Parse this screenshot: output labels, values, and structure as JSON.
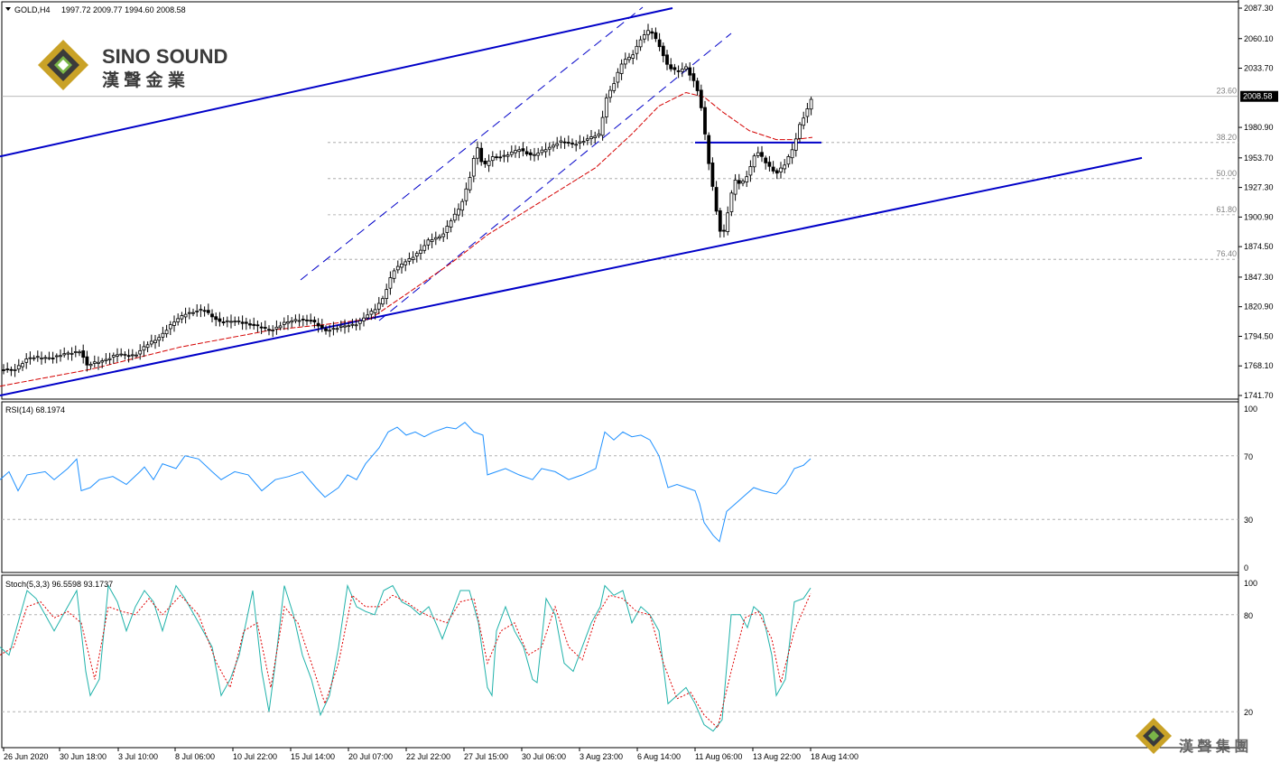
{
  "header": {
    "symbol": "GOLD,H4",
    "ohlc": "1997.72 2009.77 1994.60 2008.58"
  },
  "brand": {
    "name": "SINO SOUND",
    "chinese": "漢 聲 金 業",
    "footer_chinese": "漢 聲 集 團",
    "colors": {
      "gold": "#c9a227",
      "dark": "#3b3b3b",
      "green": "#7ab648"
    }
  },
  "price_axis": {
    "labels": [
      "2087.30",
      "2060.10",
      "2033.70",
      "1980.90",
      "1953.70",
      "1927.30",
      "1900.90",
      "1874.50",
      "1847.30",
      "1820.90",
      "1794.50",
      "1768.10",
      "1741.70"
    ],
    "current_price": "2008.58"
  },
  "fib_labels": [
    "23.60",
    "38.20",
    "50.00",
    "61.80",
    "76.40"
  ],
  "rsi": {
    "title": "RSI(14) 68.1974",
    "levels": [
      "100",
      "70",
      "30",
      "0"
    ]
  },
  "stoch": {
    "title": "Stoch(5,3,3) 96.5598 93.1737",
    "levels": [
      "100",
      "80",
      "20"
    ]
  },
  "time_axis": [
    "26 Jun 2020",
    "30 Jun 18:00",
    "3 Jul 10:00",
    "8 Jul 06:00",
    "10 Jul 22:00",
    "15 Jul 14:00",
    "20 Jul 07:00",
    "22 Jul 22:00",
    "27 Jul 15:00",
    "30 Jul 06:00",
    "3 Aug 23:00",
    "6 Aug 14:00",
    "11 Aug 06:00",
    "13 Aug 22:00",
    "18 Aug 14:00"
  ],
  "chart_data": {
    "type": "candlestick",
    "title": "GOLD,H4",
    "ylim": [
      1741.7,
      2087.3
    ],
    "price_path": [
      [
        0,
        1765
      ],
      [
        15,
        1764
      ],
      [
        30,
        1775
      ],
      [
        60,
        1776
      ],
      [
        90,
        1782
      ],
      [
        95,
        1768
      ],
      [
        110,
        1772
      ],
      [
        130,
        1778
      ],
      [
        150,
        1778
      ],
      [
        160,
        1785
      ],
      [
        175,
        1793
      ],
      [
        190,
        1805
      ],
      [
        205,
        1815
      ],
      [
        225,
        1818
      ],
      [
        245,
        1807
      ],
      [
        265,
        1808
      ],
      [
        285,
        1803
      ],
      [
        300,
        1800
      ],
      [
        315,
        1806
      ],
      [
        330,
        1810
      ],
      [
        345,
        1808
      ],
      [
        360,
        1800
      ],
      [
        375,
        1802
      ],
      [
        395,
        1806
      ],
      [
        415,
        1818
      ],
      [
        425,
        1830
      ],
      [
        435,
        1852
      ],
      [
        450,
        1862
      ],
      [
        465,
        1870
      ],
      [
        475,
        1880
      ],
      [
        490,
        1885
      ],
      [
        500,
        1898
      ],
      [
        510,
        1910
      ],
      [
        520,
        1935
      ],
      [
        528,
        1965
      ],
      [
        535,
        1945
      ],
      [
        545,
        1955
      ],
      [
        560,
        1955
      ],
      [
        575,
        1962
      ],
      [
        590,
        1955
      ],
      [
        605,
        1962
      ],
      [
        620,
        1968
      ],
      [
        635,
        1966
      ],
      [
        650,
        1970
      ],
      [
        665,
        1975
      ],
      [
        670,
        2005
      ],
      [
        680,
        2020
      ],
      [
        690,
        2040
      ],
      [
        700,
        2045
      ],
      [
        710,
        2060
      ],
      [
        720,
        2068
      ],
      [
        730,
        2055
      ],
      [
        740,
        2035
      ],
      [
        750,
        2030
      ],
      [
        760,
        2035
      ],
      [
        770,
        2020
      ],
      [
        775,
        2008
      ],
      [
        780,
        1980
      ],
      [
        785,
        1950
      ],
      [
        790,
        1925
      ],
      [
        795,
        1900
      ],
      [
        800,
        1880
      ],
      [
        805,
        1900
      ],
      [
        810,
        1920
      ],
      [
        815,
        1935
      ],
      [
        820,
        1930
      ],
      [
        825,
        1935
      ],
      [
        830,
        1942
      ],
      [
        835,
        1955
      ],
      [
        840,
        1958
      ],
      [
        850,
        1948
      ],
      [
        860,
        1940
      ],
      [
        870,
        1948
      ],
      [
        880,
        1965
      ],
      [
        885,
        1982
      ],
      [
        890,
        1990
      ],
      [
        895,
        1998
      ],
      [
        900,
        2008.58
      ]
    ],
    "moving_average": [
      [
        0,
        1750
      ],
      [
        100,
        1765
      ],
      [
        200,
        1785
      ],
      [
        300,
        1800
      ],
      [
        360,
        1805
      ],
      [
        410,
        1810
      ],
      [
        450,
        1832
      ],
      [
        500,
        1860
      ],
      [
        540,
        1885
      ],
      [
        580,
        1905
      ],
      [
        620,
        1925
      ],
      [
        660,
        1945
      ],
      [
        700,
        1975
      ],
      [
        730,
        2000
      ],
      [
        760,
        2012
      ],
      [
        780,
        2008
      ],
      [
        800,
        1995
      ],
      [
        830,
        1978
      ],
      [
        860,
        1970
      ],
      [
        880,
        1970
      ],
      [
        900,
        1972
      ]
    ],
    "fib_levels": [
      {
        "label": "23.60",
        "price": 2008.58
      },
      {
        "label": "38.20",
        "price": 1967.4
      },
      {
        "label": "50.00",
        "price": 1935.2
      },
      {
        "label": "61.80",
        "price": 1902.9
      },
      {
        "label": "76.40",
        "price": 1863.2
      }
    ],
    "rsi_path": [
      [
        0,
        55
      ],
      [
        10,
        60
      ],
      [
        20,
        48
      ],
      [
        30,
        58
      ],
      [
        50,
        60
      ],
      [
        60,
        55
      ],
      [
        75,
        62
      ],
      [
        85,
        68
      ],
      [
        90,
        48
      ],
      [
        100,
        50
      ],
      [
        110,
        55
      ],
      [
        125,
        57
      ],
      [
        140,
        52
      ],
      [
        155,
        60
      ],
      [
        160,
        63
      ],
      [
        170,
        55
      ],
      [
        180,
        65
      ],
      [
        195,
        62
      ],
      [
        205,
        70
      ],
      [
        220,
        68
      ],
      [
        235,
        60
      ],
      [
        245,
        55
      ],
      [
        260,
        60
      ],
      [
        275,
        58
      ],
      [
        290,
        48
      ],
      [
        305,
        55
      ],
      [
        320,
        57
      ],
      [
        335,
        60
      ],
      [
        350,
        50
      ],
      [
        360,
        44
      ],
      [
        375,
        50
      ],
      [
        385,
        58
      ],
      [
        395,
        55
      ],
      [
        405,
        65
      ],
      [
        420,
        75
      ],
      [
        430,
        85
      ],
      [
        440,
        88
      ],
      [
        450,
        83
      ],
      [
        460,
        85
      ],
      [
        470,
        82
      ],
      [
        480,
        85
      ],
      [
        495,
        88
      ],
      [
        505,
        87
      ],
      [
        515,
        91
      ],
      [
        525,
        85
      ],
      [
        535,
        83
      ],
      [
        540,
        58
      ],
      [
        550,
        60
      ],
      [
        560,
        62
      ],
      [
        575,
        58
      ],
      [
        590,
        55
      ],
      [
        600,
        62
      ],
      [
        615,
        60
      ],
      [
        630,
        55
      ],
      [
        645,
        58
      ],
      [
        660,
        62
      ],
      [
        670,
        85
      ],
      [
        680,
        80
      ],
      [
        690,
        85
      ],
      [
        700,
        82
      ],
      [
        710,
        83
      ],
      [
        720,
        80
      ],
      [
        730,
        70
      ],
      [
        740,
        50
      ],
      [
        750,
        52
      ],
      [
        760,
        50
      ],
      [
        770,
        48
      ],
      [
        775,
        40
      ],
      [
        780,
        28
      ],
      [
        790,
        20
      ],
      [
        797,
        16
      ],
      [
        805,
        35
      ],
      [
        815,
        40
      ],
      [
        825,
        45
      ],
      [
        835,
        50
      ],
      [
        845,
        48
      ],
      [
        860,
        46
      ],
      [
        870,
        52
      ],
      [
        880,
        62
      ],
      [
        890,
        64
      ],
      [
        898,
        68.2
      ]
    ],
    "stoch_k": [
      [
        0,
        60
      ],
      [
        10,
        55
      ],
      [
        20,
        75
      ],
      [
        30,
        95
      ],
      [
        40,
        90
      ],
      [
        50,
        80
      ],
      [
        60,
        70
      ],
      [
        70,
        80
      ],
      [
        85,
        95
      ],
      [
        95,
        45
      ],
      [
        100,
        30
      ],
      [
        110,
        40
      ],
      [
        120,
        98
      ],
      [
        130,
        88
      ],
      [
        140,
        70
      ],
      [
        150,
        85
      ],
      [
        160,
        95
      ],
      [
        170,
        88
      ],
      [
        180,
        70
      ],
      [
        195,
        98
      ],
      [
        205,
        90
      ],
      [
        220,
        75
      ],
      [
        235,
        60
      ],
      [
        245,
        30
      ],
      [
        255,
        40
      ],
      [
        265,
        55
      ],
      [
        280,
        95
      ],
      [
        290,
        45
      ],
      [
        298,
        20
      ],
      [
        305,
        50
      ],
      [
        315,
        98
      ],
      [
        325,
        80
      ],
      [
        335,
        55
      ],
      [
        345,
        40
      ],
      [
        355,
        18
      ],
      [
        365,
        30
      ],
      [
        375,
        60
      ],
      [
        385,
        98
      ],
      [
        395,
        85
      ],
      [
        405,
        82
      ],
      [
        415,
        80
      ],
      [
        425,
        95
      ],
      [
        435,
        98
      ],
      [
        445,
        88
      ],
      [
        455,
        85
      ],
      [
        465,
        80
      ],
      [
        475,
        85
      ],
      [
        485,
        72
      ],
      [
        490,
        65
      ],
      [
        500,
        80
      ],
      [
        510,
        95
      ],
      [
        520,
        95
      ],
      [
        530,
        75
      ],
      [
        540,
        35
      ],
      [
        545,
        30
      ],
      [
        550,
        70
      ],
      [
        560,
        85
      ],
      [
        570,
        70
      ],
      [
        580,
        60
      ],
      [
        590,
        40
      ],
      [
        595,
        38
      ],
      [
        605,
        90
      ],
      [
        615,
        80
      ],
      [
        625,
        50
      ],
      [
        635,
        45
      ],
      [
        645,
        60
      ],
      [
        655,
        75
      ],
      [
        665,
        85
      ],
      [
        670,
        98
      ],
      [
        680,
        92
      ],
      [
        690,
        95
      ],
      [
        700,
        75
      ],
      [
        710,
        85
      ],
      [
        720,
        80
      ],
      [
        730,
        70
      ],
      [
        740,
        25
      ],
      [
        750,
        30
      ],
      [
        760,
        35
      ],
      [
        770,
        25
      ],
      [
        780,
        12
      ],
      [
        790,
        8
      ],
      [
        800,
        15
      ],
      [
        810,
        80
      ],
      [
        820,
        80
      ],
      [
        828,
        72
      ],
      [
        835,
        85
      ],
      [
        845,
        80
      ],
      [
        855,
        55
      ],
      [
        860,
        30
      ],
      [
        870,
        40
      ],
      [
        880,
        88
      ],
      [
        890,
        90
      ],
      [
        898,
        96.56
      ]
    ],
    "stoch_d": [
      [
        0,
        55
      ],
      [
        15,
        60
      ],
      [
        30,
        85
      ],
      [
        45,
        88
      ],
      [
        60,
        78
      ],
      [
        75,
        82
      ],
      [
        90,
        75
      ],
      [
        105,
        40
      ],
      [
        120,
        85
      ],
      [
        135,
        82
      ],
      [
        150,
        80
      ],
      [
        165,
        90
      ],
      [
        180,
        80
      ],
      [
        200,
        92
      ],
      [
        220,
        80
      ],
      [
        240,
        50
      ],
      [
        255,
        35
      ],
      [
        270,
        70
      ],
      [
        285,
        75
      ],
      [
        300,
        35
      ],
      [
        315,
        85
      ],
      [
        330,
        75
      ],
      [
        345,
        50
      ],
      [
        360,
        25
      ],
      [
        375,
        50
      ],
      [
        390,
        92
      ],
      [
        405,
        85
      ],
      [
        420,
        85
      ],
      [
        435,
        92
      ],
      [
        450,
        88
      ],
      [
        465,
        82
      ],
      [
        480,
        78
      ],
      [
        495,
        75
      ],
      [
        510,
        88
      ],
      [
        525,
        90
      ],
      [
        540,
        50
      ],
      [
        555,
        70
      ],
      [
        570,
        75
      ],
      [
        585,
        55
      ],
      [
        600,
        60
      ],
      [
        615,
        85
      ],
      [
        630,
        60
      ],
      [
        645,
        52
      ],
      [
        660,
        78
      ],
      [
        675,
        92
      ],
      [
        690,
        90
      ],
      [
        705,
        82
      ],
      [
        720,
        80
      ],
      [
        735,
        50
      ],
      [
        750,
        28
      ],
      [
        765,
        32
      ],
      [
        780,
        18
      ],
      [
        795,
        10
      ],
      [
        810,
        45
      ],
      [
        825,
        78
      ],
      [
        840,
        82
      ],
      [
        855,
        65
      ],
      [
        865,
        38
      ],
      [
        880,
        70
      ],
      [
        898,
        93.17
      ]
    ],
    "trendlines": [
      {
        "color": "#0000c8",
        "from": [
          0,
          1955
        ],
        "to": [
          745,
          2087.3
        ]
      },
      {
        "color": "#0000c8",
        "from": [
          0,
          1741.7
        ],
        "to": [
          1265,
          1953.7
        ]
      },
      {
        "color": "#0000c8",
        "from": [
          770,
          1967.4
        ],
        "to": [
          910,
          1967.4
        ]
      }
    ]
  }
}
